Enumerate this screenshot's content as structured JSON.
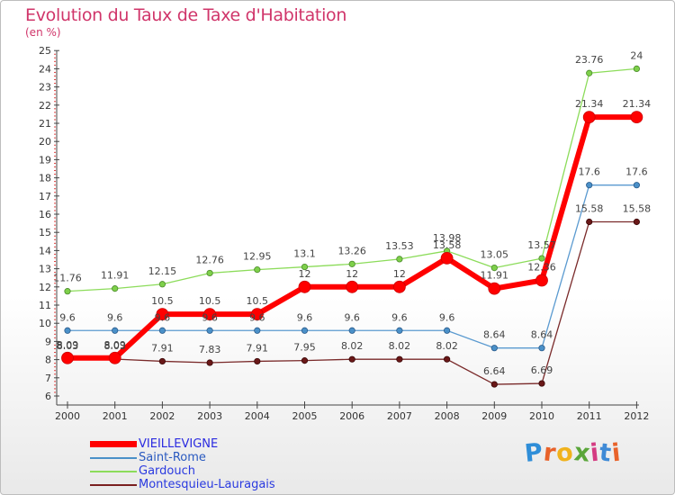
{
  "header": {
    "title": "Evolution du Taux de Taxe d'Habitation",
    "subtitle": "(en %)"
  },
  "logo": {
    "text": "Proxiti",
    "letter_colors": [
      "#2f8ed8",
      "#e8622a",
      "#f0b21c",
      "#5aa63a",
      "#d43b82",
      "#3f8ad6",
      "#e8622a"
    ]
  },
  "chart_data": {
    "type": "line",
    "title": "Evolution du Taux de Taxe d'Habitation",
    "ylabel": "(en %)",
    "x": [
      "2000",
      "2001",
      "2002",
      "2003",
      "2004",
      "2005",
      "2006",
      "2007",
      "2008",
      "2009",
      "2010",
      "2011",
      "2012"
    ],
    "ylim": [
      6,
      25
    ],
    "yticks": [
      "6",
      "7",
      "8",
      "9",
      "10",
      "11",
      "12",
      "13",
      "14",
      "15",
      "16",
      "17",
      "18",
      "19",
      "20",
      "21",
      "22",
      "23",
      "24",
      "25"
    ],
    "grid": false,
    "legend_position": "bottom-left",
    "series": [
      {
        "name": "VIEILLEVIGNE",
        "color": "#ff0000",
        "values": [
          8.09,
          8.09,
          10.5,
          10.5,
          10.5,
          12,
          12,
          12,
          13.58,
          11.91,
          12.36,
          21.34,
          21.34
        ],
        "labels": [
          "8.09",
          "8.09",
          "10.5",
          "10.5",
          "10.5",
          "12",
          "12",
          "12",
          "13.58",
          "11.91",
          "12.36",
          "21.34",
          "21.34"
        ]
      },
      {
        "name": "Saint-Rome",
        "color": "#4a90c8",
        "values": [
          9.6,
          9.6,
          9.6,
          9.6,
          9.6,
          9.6,
          9.6,
          9.6,
          9.6,
          8.64,
          8.64,
          17.6,
          17.6
        ],
        "labels": [
          "9.6",
          "9.6",
          "9.6",
          "9.6",
          "9.6",
          "9.6",
          "9.6",
          "9.6",
          "9.6",
          "8.64",
          "8.64",
          "17.6",
          "17.6"
        ]
      },
      {
        "name": "Gardouch",
        "color": "#8cdc5a",
        "values": [
          11.76,
          11.91,
          12.15,
          12.76,
          12.95,
          13.1,
          13.26,
          13.53,
          13.98,
          13.05,
          13.57,
          23.76,
          24
        ],
        "labels": [
          "11.76",
          "11.91",
          "12.15",
          "12.76",
          "12.95",
          "13.1",
          "13.26",
          "13.53",
          "13.98",
          "13.05",
          "13.57",
          "23.76",
          "24"
        ]
      },
      {
        "name": "Montesquieu-Lauragais",
        "color": "#7a2020",
        "values": [
          8.03,
          8.03,
          7.91,
          7.83,
          7.91,
          7.95,
          8.02,
          8.02,
          8.02,
          6.64,
          6.69,
          15.58,
          15.58
        ],
        "labels": [
          "8.03",
          "8.03",
          "7.91",
          "7.83",
          "7.91",
          "7.95",
          "8.02",
          "8.02",
          "8.02",
          "6.64",
          "6.69",
          "15.58",
          "15.58"
        ]
      }
    ]
  }
}
